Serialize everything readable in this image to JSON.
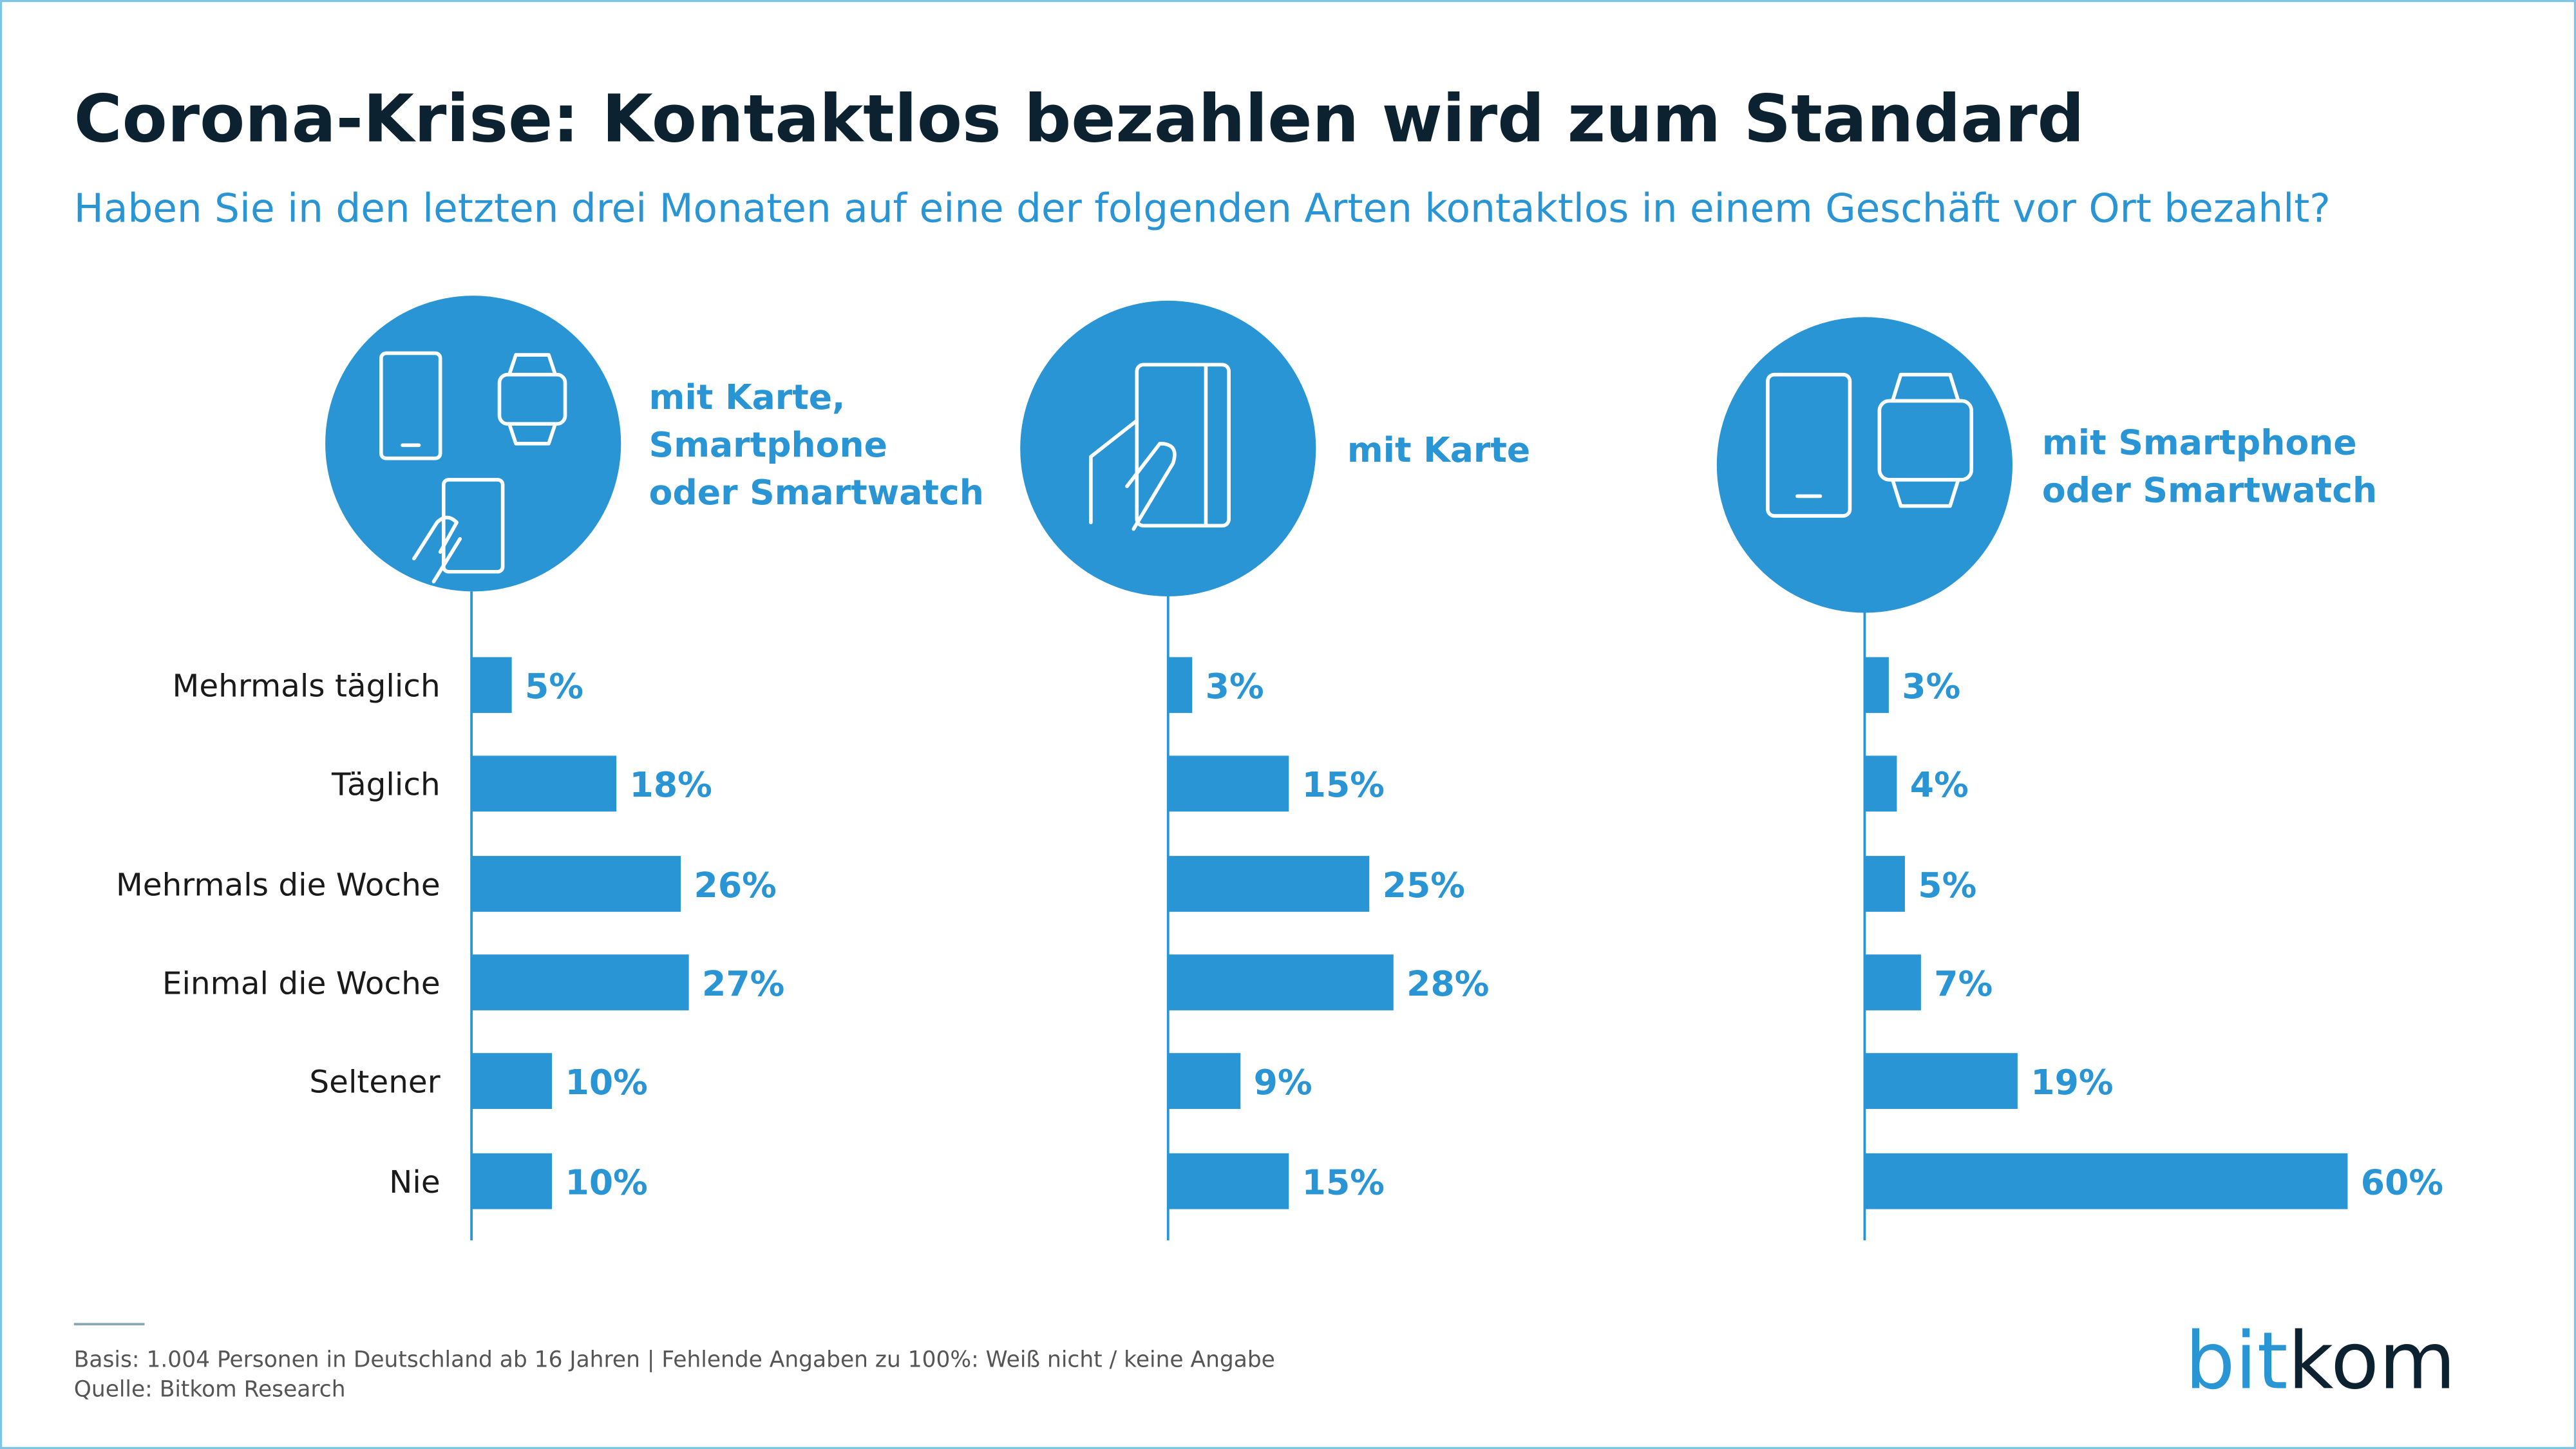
{
  "chart_data": {
    "type": "bar",
    "title": "Corona-Krise: Kontaktlos bezahlen wird zum Standard",
    "subtitle": "Haben Sie in den letzten drei Monaten auf eine der folgenden Arten kontaktlos in einem Geschäft vor Ort bezahlt?",
    "categories": [
      "Mehrmals täglich",
      "Täglich",
      "Mehrmals die Woche",
      "Einmal die Woche",
      "Seltener",
      "Nie"
    ],
    "series": [
      {
        "name": [
          "mit Karte,",
          "Smartphone",
          "oder Smartwatch"
        ],
        "color": "#2a95d5",
        "values": [
          5,
          18,
          26,
          27,
          10,
          10
        ],
        "value_labels": [
          "5%",
          "18%",
          "26%",
          "27%",
          "10%",
          "10%"
        ]
      },
      {
        "name": [
          "mit Karte"
        ],
        "color": "#2a95d5",
        "values": [
          3,
          15,
          25,
          28,
          9,
          15
        ],
        "value_labels": [
          "3%",
          "15%",
          "25%",
          "28%",
          "9%",
          "15%"
        ]
      },
      {
        "name": [
          "mit Smartphone",
          "oder Smartwatch"
        ],
        "color": "#2a95d5",
        "values": [
          3,
          4,
          5,
          7,
          19,
          60
        ],
        "value_labels": [
          "3%",
          "4%",
          "5%",
          "7%",
          "19%",
          "60%"
        ]
      }
    ],
    "footer": {
      "basis": "Basis: 1.004 Personen in Deutschland ab 16 Jahren | Fehlende Angaben zu 100%: Weiß nicht / keine Angabe",
      "source": "Quelle: Bitkom Research"
    },
    "logo": {
      "part1": "bit",
      "part2": "kom"
    }
  }
}
